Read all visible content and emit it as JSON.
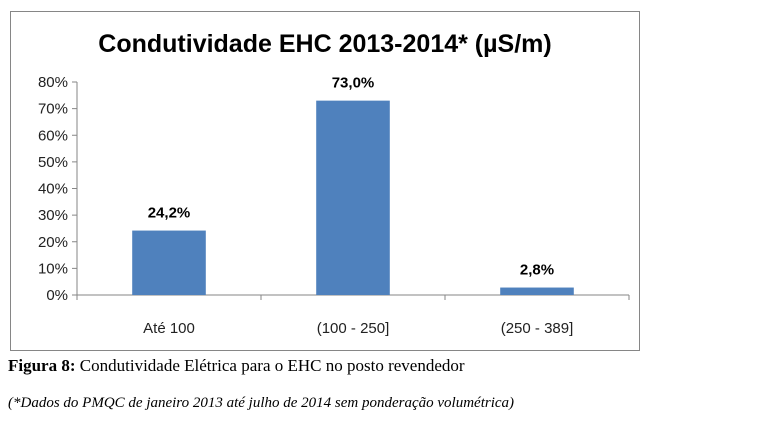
{
  "chart_data": {
    "type": "bar",
    "title": "Condutividade EHC 2013-2014* (µS/m)",
    "categories": [
      "Até 100",
      "(100 - 250]",
      "(250 - 389]"
    ],
    "values": [
      24.2,
      73.0,
      2.8
    ],
    "data_labels": [
      "24,2%",
      "73,0%",
      "2,8%"
    ],
    "ylim": [
      0,
      80
    ],
    "y_ticks": [
      0,
      10,
      20,
      30,
      40,
      50,
      60,
      70,
      80
    ],
    "y_tick_labels": [
      "0%",
      "10%",
      "20%",
      "30%",
      "40%",
      "50%",
      "60%",
      "70%",
      "80%"
    ],
    "xlabel": "",
    "ylabel": "",
    "grid": false,
    "legend": "none",
    "bar_color": "#4F81BD"
  },
  "caption": {
    "label": "Figura 8:",
    "text": "Condutividade Elétrica para o EHC no posto revendedor"
  },
  "note": "(*Dados do PMQC de janeiro 2013 até julho de 2014 sem ponderação volumétrica)"
}
